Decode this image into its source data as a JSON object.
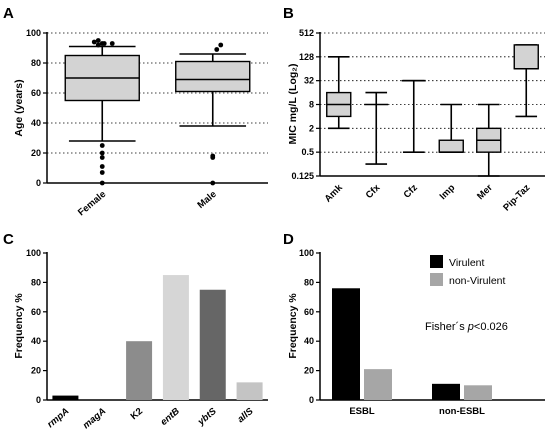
{
  "colors": {
    "box_fill": "#d3d3d3",
    "virulent": "#000000",
    "non_virulent": "#a6a6a6"
  },
  "chart_data": [
    {
      "panel": "A",
      "type": "boxplot",
      "ylabel": "Age (years)",
      "ylim": [
        0,
        100
      ],
      "yticks": [
        0,
        20,
        40,
        60,
        80,
        100
      ],
      "grid": "horizontal dotted",
      "categories": [
        "Female",
        "Male"
      ],
      "boxes": [
        {
          "name": "Female",
          "whisker_low": 28,
          "q1": 55,
          "median": 70,
          "q3": 85,
          "whisker_high": 91,
          "outliers": [
            0,
            7,
            11,
            17,
            20,
            25,
            92,
            93,
            93,
            93,
            94,
            95
          ]
        },
        {
          "name": "Male",
          "whisker_low": 38,
          "q1": 61,
          "median": 69,
          "q3": 81,
          "whisker_high": 86,
          "outliers": [
            0,
            17,
            18,
            89,
            92
          ]
        }
      ]
    },
    {
      "panel": "B",
      "type": "boxplot",
      "ylabel": "MIC mg/L (Log₂)",
      "scale": "log2",
      "ylim": [
        0.125,
        512
      ],
      "yticks": [
        "0.125",
        "0.5",
        "2",
        "8",
        "32",
        "128",
        "512"
      ],
      "grid": "horizontal dotted",
      "categories": [
        "Amk",
        "Cfx",
        "Cfz",
        "Imp",
        "Mer",
        "Pip-Taz"
      ],
      "boxes": [
        {
          "name": "Amk",
          "whisker_low": 2,
          "q1": 4,
          "median": 8,
          "q3": 16,
          "whisker_high": 128
        },
        {
          "name": "Cfx",
          "whisker_low": 0.25,
          "q1": 8,
          "median": 8,
          "q3": 8,
          "whisker_high": 16
        },
        {
          "name": "Cfz",
          "whisker_low": 0.5,
          "q1": 32,
          "median": 32,
          "q3": 32,
          "whisker_high": 32
        },
        {
          "name": "Imp",
          "whisker_low": 0.5,
          "q1": 0.5,
          "median": 0.5,
          "q3": 1,
          "whisker_high": 8
        },
        {
          "name": "Mer",
          "whisker_low": 0.125,
          "q1": 0.5,
          "median": 1,
          "q3": 2,
          "whisker_high": 8
        },
        {
          "name": "Pip-Taz",
          "whisker_low": 4,
          "q1": 64,
          "median": 64,
          "q3": 256,
          "whisker_high": 256
        }
      ]
    },
    {
      "panel": "C",
      "type": "bar",
      "ylabel": "Frequency %",
      "ylim": [
        0,
        100
      ],
      "yticks": [
        0,
        20,
        40,
        60,
        80,
        100
      ],
      "categories": [
        "rmpA",
        "magA",
        "K2",
        "entB",
        "ybtS",
        "allS"
      ],
      "category_italic": [
        true,
        true,
        false,
        true,
        true,
        true
      ],
      "values": [
        3,
        0,
        40,
        85,
        75,
        12
      ],
      "bar_colors": [
        "#000000",
        "#000000",
        "#8c8c8c",
        "#d6d6d6",
        "#666666",
        "#c4c4c4"
      ]
    },
    {
      "panel": "D",
      "type": "bar",
      "ylabel": "Frequency %",
      "ylim": [
        0,
        100
      ],
      "yticks": [
        0,
        20,
        40,
        60,
        80,
        100
      ],
      "categories": [
        "ESBL",
        "non-ESBL"
      ],
      "series": [
        {
          "name": "Virulent",
          "values": [
            76,
            11
          ]
        },
        {
          "name": "non-Virulent",
          "values": [
            21,
            10
          ]
        }
      ],
      "legend_position": "top-right",
      "annotation_prefix": "Fisher´s ",
      "annotation_p": "p",
      "annotation_suffix": "<0.026"
    }
  ]
}
